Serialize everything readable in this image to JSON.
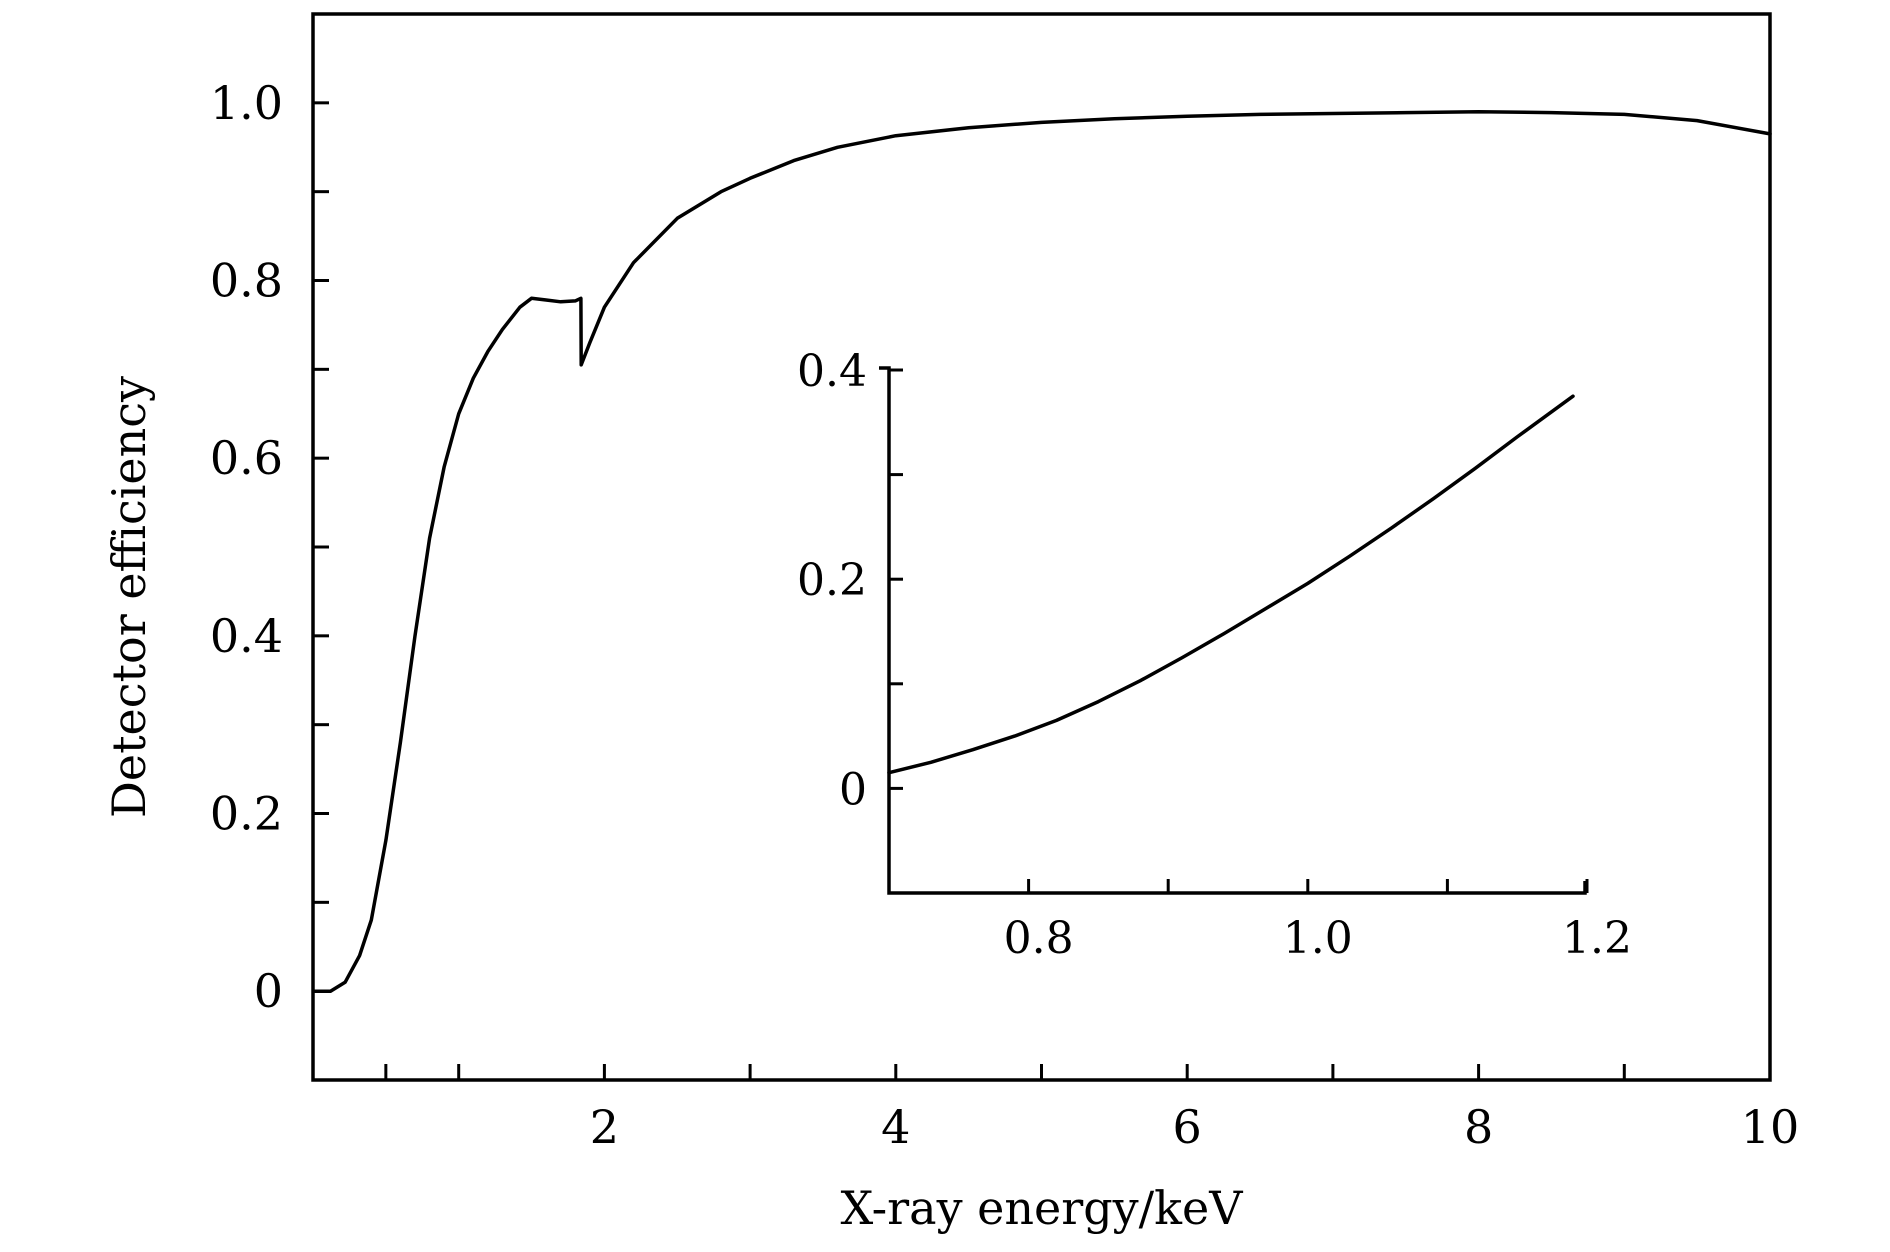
{
  "chart_data": [
    {
      "id": "main",
      "type": "line",
      "xlabel": "X-ray energy/keV",
      "ylabel": "Detector efficiency",
      "xlim": [
        0.0,
        10.0
      ],
      "ylim": [
        -0.1,
        1.1
      ],
      "x_ticks": [
        {
          "value": 0.5,
          "label": ""
        },
        {
          "value": 1,
          "label": ""
        },
        {
          "value": 2,
          "label": "2"
        },
        {
          "value": 3,
          "label": ""
        },
        {
          "value": 4,
          "label": "4"
        },
        {
          "value": 5,
          "label": ""
        },
        {
          "value": 6,
          "label": "6"
        },
        {
          "value": 7,
          "label": ""
        },
        {
          "value": 8,
          "label": "8"
        },
        {
          "value": 9,
          "label": ""
        },
        {
          "value": 10,
          "label": "10"
        }
      ],
      "y_ticks": [
        {
          "value": 0,
          "label": "0"
        },
        {
          "value": 0.1,
          "label": ""
        },
        {
          "value": 0.2,
          "label": "0.2"
        },
        {
          "value": 0.3,
          "label": ""
        },
        {
          "value": 0.4,
          "label": "0.4"
        },
        {
          "value": 0.5,
          "label": ""
        },
        {
          "value": 0.6,
          "label": "0.6"
        },
        {
          "value": 0.7,
          "label": ""
        },
        {
          "value": 0.8,
          "label": "0.8"
        },
        {
          "value": 0.9,
          "label": ""
        },
        {
          "value": 1.0,
          "label": "1.0"
        }
      ],
      "grid": false,
      "series": [
        {
          "x": [
            0.01,
            0.12,
            0.22,
            0.32,
            0.4,
            0.5,
            0.6,
            0.7,
            0.8,
            0.9,
            1.0,
            1.1,
            1.2,
            1.3,
            1.42,
            1.5,
            1.6,
            1.7,
            1.8,
            1.839,
            1.841,
            1.9,
            2.0,
            2.2,
            2.5,
            2.8,
            3.0,
            3.3,
            3.6,
            4.0,
            4.5,
            5.0,
            5.5,
            6.0,
            6.5,
            7.0,
            7.5,
            8.0,
            8.5,
            9.0,
            9.5,
            10.0
          ],
          "y": [
            0.0,
            0.0,
            0.01,
            0.04,
            0.08,
            0.17,
            0.28,
            0.4,
            0.51,
            0.59,
            0.65,
            0.69,
            0.72,
            0.745,
            0.77,
            0.78,
            0.778,
            0.776,
            0.777,
            0.78,
            0.705,
            0.73,
            0.77,
            0.82,
            0.87,
            0.9,
            0.915,
            0.935,
            0.95,
            0.963,
            0.972,
            0.978,
            0.982,
            0.985,
            0.987,
            0.988,
            0.989,
            0.99,
            0.989,
            0.987,
            0.98,
            0.965
          ]
        }
      ]
    },
    {
      "id": "inset",
      "type": "line",
      "xlim": [
        0.7,
        1.2
      ],
      "ylim": [
        -0.1,
        0.4
      ],
      "x_ticks": [
        {
          "value": 0.8,
          "label": "0.8"
        },
        {
          "value": 0.9,
          "label": ""
        },
        {
          "value": 1.0,
          "label": "1.0"
        },
        {
          "value": 1.1,
          "label": ""
        },
        {
          "value": 1.2,
          "label": "1.2"
        }
      ],
      "y_ticks": [
        {
          "value": 0,
          "label": "0"
        },
        {
          "value": 0.1,
          "label": ""
        },
        {
          "value": 0.2,
          "label": "0.2"
        },
        {
          "value": 0.3,
          "label": ""
        },
        {
          "value": 0.4,
          "label": "0.4"
        }
      ],
      "grid": false,
      "series": [
        {
          "x": [
            0.7,
            0.73,
            0.76,
            0.79,
            0.82,
            0.85,
            0.88,
            0.91,
            0.94,
            0.97,
            1.0,
            1.03,
            1.06,
            1.09,
            1.12,
            1.15,
            1.19
          ],
          "y": [
            0.015,
            0.025,
            0.037,
            0.05,
            0.065,
            0.083,
            0.103,
            0.125,
            0.148,
            0.172,
            0.196,
            0.222,
            0.249,
            0.277,
            0.306,
            0.336,
            0.375
          ]
        }
      ]
    }
  ]
}
